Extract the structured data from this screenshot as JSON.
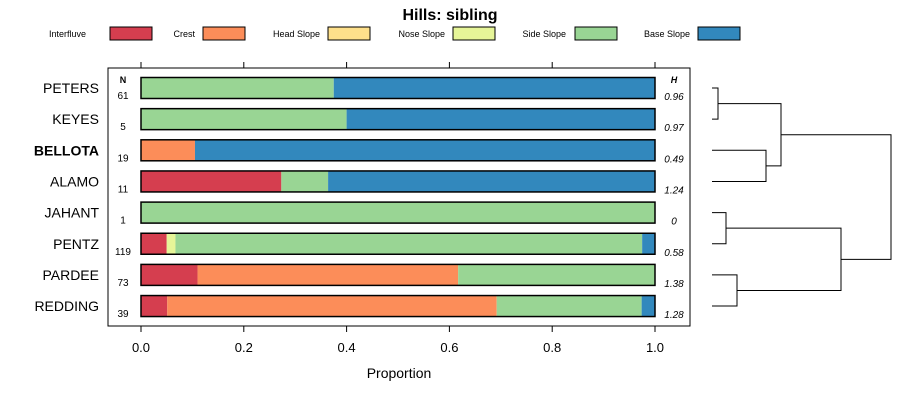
{
  "chart_data": {
    "type": "bar",
    "stacked": true,
    "orientation": "horizontal",
    "title": "Hills: sibling",
    "xlabel": "Proportion",
    "ylabel": "",
    "xlim": [
      0,
      1
    ],
    "xticks": [
      "0.0",
      "0.2",
      "0.4",
      "0.6",
      "0.8",
      "1.0"
    ],
    "n_header": "N",
    "h_header": "H",
    "highlighted": "BELLOTA",
    "legend": [
      {
        "name": "Interfluve",
        "color": "#D53E4F"
      },
      {
        "name": "Crest",
        "color": "#FC8D59"
      },
      {
        "name": "Head Slope",
        "color": "#FEE08B"
      },
      {
        "name": "Nose Slope",
        "color": "#E6F598"
      },
      {
        "name": "Side Slope",
        "color": "#99D594"
      },
      {
        "name": "Base Slope",
        "color": "#3288BD"
      }
    ],
    "rows": [
      {
        "label": "PETERS",
        "n": "61",
        "h": "0.96",
        "values": [
          0,
          0,
          0,
          0,
          0.375,
          0.625
        ]
      },
      {
        "label": "KEYES",
        "n": "5",
        "h": "0.97",
        "values": [
          0,
          0,
          0,
          0,
          0.4,
          0.6
        ]
      },
      {
        "label": "BELLOTA",
        "n": "19",
        "h": "0.49",
        "values": [
          0,
          0.105,
          0,
          0,
          0,
          0.895
        ]
      },
      {
        "label": "ALAMO",
        "n": "11",
        "h": "1.24",
        "values": [
          0.273,
          0,
          0,
          0,
          0.091,
          0.636
        ]
      },
      {
        "label": "JAHANT",
        "n": "1",
        "h": "0",
        "values": [
          0,
          0,
          0,
          0,
          1.0,
          0
        ]
      },
      {
        "label": "PENTZ",
        "n": "119",
        "h": "0.58",
        "values": [
          0.05,
          0,
          0,
          0.017,
          0.908,
          0.025
        ]
      },
      {
        "label": "PARDEE",
        "n": "73",
        "h": "1.38",
        "values": [
          0.11,
          0.507,
          0,
          0,
          0.383,
          0
        ]
      },
      {
        "label": "REDDING",
        "n": "39",
        "h": "1.28",
        "values": [
          0.051,
          0.641,
          0,
          0,
          0.282,
          0.026
        ]
      }
    ]
  }
}
